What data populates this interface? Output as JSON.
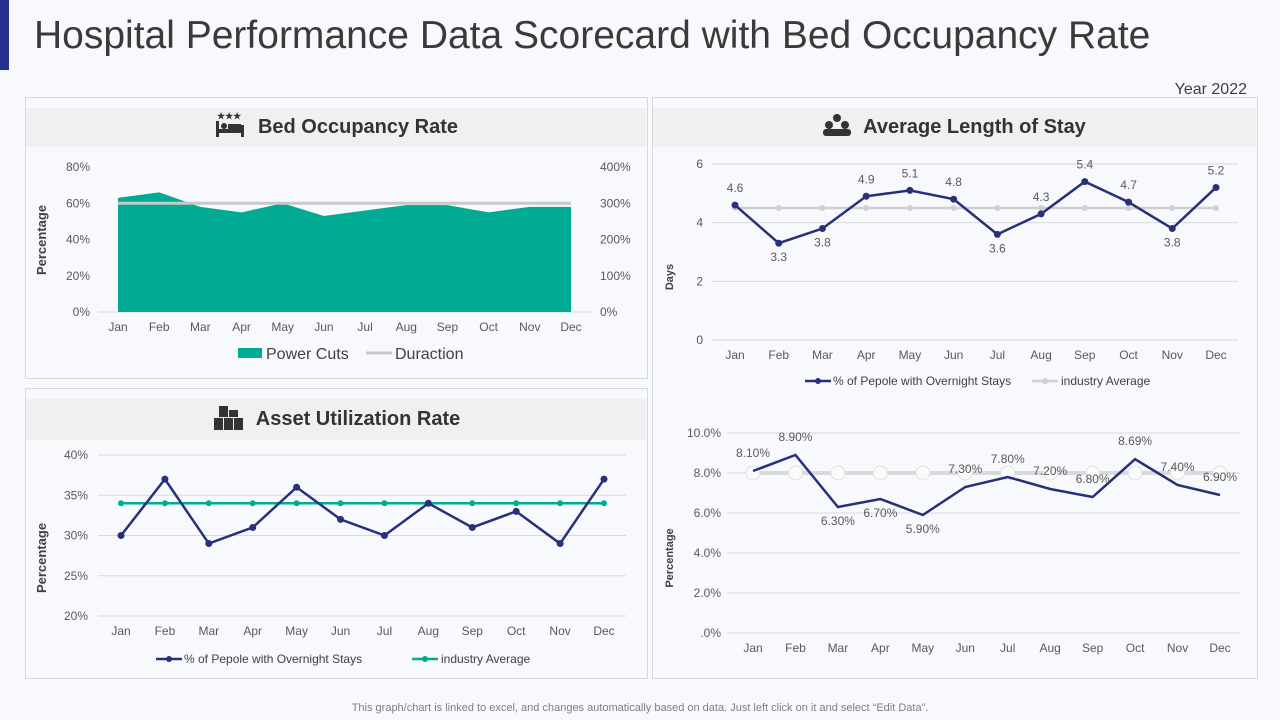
{
  "title": "Hospital Performance Data Scorecard with Bed Occupancy Rate",
  "year": "Year 2022",
  "footer": "This graph/chart is linked to excel, and changes automatically based on data. Just left click on it and select “Edit Data”.",
  "panels": {
    "bed": {
      "title": "Bed Occupancy Rate",
      "icon": "hotel-bed-icon"
    },
    "asset": {
      "title": "Asset Utilization  Rate",
      "icon": "boxes-icon"
    },
    "stay": {
      "title": "Average Length of Stay",
      "icon": "people-group-icon"
    }
  },
  "colors": {
    "teal": "#00ab94",
    "navy": "#27307a",
    "gray": "#c8c8c8",
    "accent": "#27318b"
  },
  "chart_data": [
    {
      "id": "bed",
      "type": "area",
      "categories": [
        "Jan",
        "Feb",
        "Mar",
        "Apr",
        "May",
        "Jun",
        "Jul",
        "Aug",
        "Sep",
        "Oct",
        "Nov",
        "Dec"
      ],
      "ylabel": "Percentage",
      "ylim": [
        0,
        80
      ],
      "yticks": [
        "0%",
        "20%",
        "40%",
        "60%",
        "80%"
      ],
      "y2lim": [
        0,
        400
      ],
      "y2ticks": [
        "0%",
        "100%",
        "200%",
        "300%",
        "400%"
      ],
      "series": [
        {
          "name": "Power Cuts",
          "kind": "area",
          "axis": "left",
          "values": [
            63,
            66,
            58,
            55,
            60,
            53,
            56,
            59,
            59,
            55,
            58,
            58
          ]
        },
        {
          "name": "Duraction",
          "kind": "line",
          "axis": "right",
          "values": [
            300,
            300,
            300,
            300,
            300,
            300,
            300,
            300,
            300,
            300,
            300,
            300
          ]
        }
      ],
      "legend": "bottom",
      "grid": false
    },
    {
      "id": "asset",
      "type": "line",
      "categories": [
        "Jan",
        "Feb",
        "Mar",
        "Apr",
        "May",
        "Jun",
        "Jul",
        "Aug",
        "Sep",
        "Oct",
        "Nov",
        "Dec"
      ],
      "ylabel": "Percentage",
      "ylim": [
        20,
        40
      ],
      "yticks": [
        "20%",
        "25%",
        "30%",
        "35%",
        "40%"
      ],
      "series": [
        {
          "name": "% of Pepole with Overnight Stays",
          "values": [
            30,
            37,
            29,
            31,
            36,
            32,
            30,
            34,
            31,
            33,
            29,
            37
          ]
        },
        {
          "name": "industry Average",
          "values": [
            34,
            34,
            34,
            34,
            34,
            34,
            34,
            34,
            34,
            34,
            34,
            34
          ]
        }
      ],
      "legend": "bottom",
      "grid": true
    },
    {
      "id": "stay",
      "type": "line",
      "categories": [
        "Jan",
        "Feb",
        "Mar",
        "Apr",
        "May",
        "Jun",
        "Jul",
        "Aug",
        "Sep",
        "Oct",
        "Nov",
        "Dec"
      ],
      "ylabel": "Days",
      "ylim": [
        0,
        6
      ],
      "yticks": [
        "0",
        "2",
        "4",
        "6"
      ],
      "series": [
        {
          "name": "% of Pepole with Overnight Stays",
          "values": [
            4.6,
            3.3,
            3.8,
            4.9,
            5.1,
            4.8,
            3.6,
            4.3,
            5.4,
            4.7,
            3.8,
            5.2
          ],
          "labels": [
            "4.6",
            "3.3",
            "3.8",
            "4.9",
            "5.1",
            "4.8",
            "3.6",
            "4.3",
            "5.4",
            "4.7",
            "3.8",
            "5.2"
          ]
        },
        {
          "name": "industry Average",
          "values": [
            4.5,
            4.5,
            4.5,
            4.5,
            4.5,
            4.5,
            4.5,
            4.5,
            4.5,
            4.5,
            4.5,
            4.5
          ]
        }
      ],
      "legend": "bottom",
      "grid": true
    },
    {
      "id": "rate",
      "type": "line",
      "categories": [
        "Jan",
        "Feb",
        "Mar",
        "Apr",
        "May",
        "Jun",
        "Jul",
        "Aug",
        "Sep",
        "Oct",
        "Nov",
        "Dec"
      ],
      "ylabel": "Percentage",
      "ylim": [
        0,
        10
      ],
      "yticks": [
        ".0%",
        "2.0%",
        "4.0%",
        "6.0%",
        "8.0%",
        "10.0%"
      ],
      "series": [
        {
          "name": "",
          "values": [
            8.1,
            8.9,
            6.3,
            6.7,
            5.9,
            7.3,
            7.8,
            7.2,
            6.8,
            8.69,
            7.4,
            6.9
          ],
          "labels": [
            "8.10%",
            "8.90%",
            "6.30%",
            "6.70%",
            "5.90%",
            "7.30%",
            "7.80%",
            "7.20%",
            "6.80%",
            "8.69%",
            "7.40%",
            "6.90%"
          ]
        },
        {
          "name": "",
          "values": [
            8,
            8,
            8,
            8,
            8,
            8,
            8,
            8,
            8,
            8,
            8,
            8
          ]
        }
      ],
      "grid": true
    }
  ]
}
